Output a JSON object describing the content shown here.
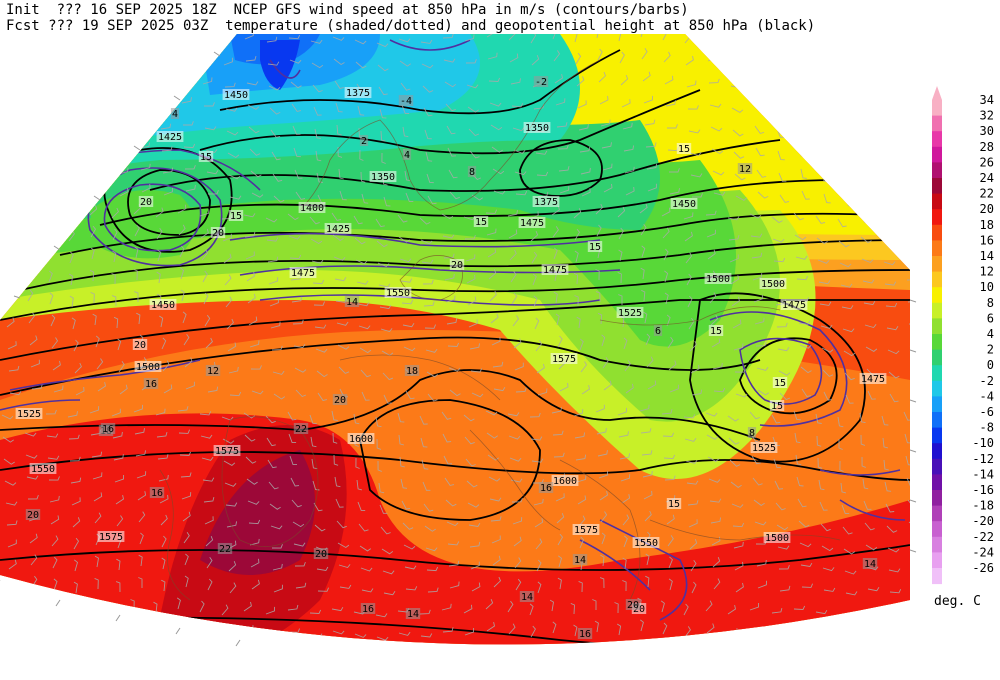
{
  "header": {
    "line1": "Init  ??? 16 SEP 2025 18Z  NCEP GFS wind speed at 850 hPa in m/s (contours/barbs)",
    "line2": "Fcst ??? 19 SEP 2025 03Z  temperature (shaded/dotted) and geopotential height at 850 hPa (black)"
  },
  "legend": {
    "units": "deg. C",
    "levels": [
      {
        "label": "34",
        "color": "#f8b0c4"
      },
      {
        "label": "32",
        "color": "#f070b0"
      },
      {
        "label": "30",
        "color": "#e838a8"
      },
      {
        "label": "28",
        "color": "#d0189c"
      },
      {
        "label": "26",
        "color": "#b01070"
      },
      {
        "label": "24",
        "color": "#9c0838"
      },
      {
        "label": "22",
        "color": "#c80a14"
      },
      {
        "label": "20",
        "color": "#f01810"
      },
      {
        "label": "18",
        "color": "#f84c10"
      },
      {
        "label": "16",
        "color": "#fc7a18"
      },
      {
        "label": "14",
        "color": "#fca020"
      },
      {
        "label": "12",
        "color": "#fcc820"
      },
      {
        "label": "10",
        "color": "#f8f000"
      },
      {
        "label": "8",
        "color": "#c8f028"
      },
      {
        "label": "6",
        "color": "#90e030"
      },
      {
        "label": "4",
        "color": "#58d838"
      },
      {
        "label": "2",
        "color": "#30d070"
      },
      {
        "label": "0",
        "color": "#20d8b0"
      },
      {
        "label": "-2",
        "color": "#20c8e8"
      },
      {
        "label": "-4",
        "color": "#18a0f8"
      },
      {
        "label": "-6",
        "color": "#1070f8"
      },
      {
        "label": "-8",
        "color": "#0838f0"
      },
      {
        "label": "-10",
        "color": "#2010d0"
      },
      {
        "label": "-12",
        "color": "#4810b8"
      },
      {
        "label": "-14",
        "color": "#7010a8"
      },
      {
        "label": "-16",
        "color": "#9020a0"
      },
      {
        "label": "-18",
        "color": "#b040b8"
      },
      {
        "label": "-20",
        "color": "#c860d0"
      },
      {
        "label": "-22",
        "color": "#d880e0"
      },
      {
        "label": "-24",
        "color": "#e8a0f0"
      },
      {
        "label": "-26",
        "color": "#f0c0f8"
      }
    ]
  },
  "map": {
    "height_labels": [
      {
        "text": "1450",
        "kind": "height"
      },
      {
        "text": "1375",
        "kind": "height"
      },
      {
        "text": "1425",
        "kind": "height"
      },
      {
        "text": "1350",
        "kind": "height"
      },
      {
        "text": "1350",
        "kind": "height"
      },
      {
        "text": "1375",
        "kind": "height"
      },
      {
        "text": "1450",
        "kind": "height"
      },
      {
        "text": "1400",
        "kind": "height"
      },
      {
        "text": "1425",
        "kind": "height"
      },
      {
        "text": "1475",
        "kind": "height"
      },
      {
        "text": "1500",
        "kind": "height"
      },
      {
        "text": "1500",
        "kind": "height"
      },
      {
        "text": "1475",
        "kind": "height"
      },
      {
        "text": "1475",
        "kind": "height"
      },
      {
        "text": "1525",
        "kind": "height"
      },
      {
        "text": "1550",
        "kind": "height"
      },
      {
        "text": "1450",
        "kind": "height"
      },
      {
        "text": "1500",
        "kind": "height"
      },
      {
        "text": "1575",
        "kind": "height"
      },
      {
        "text": "1525",
        "kind": "height"
      },
      {
        "text": "1550",
        "kind": "height"
      },
      {
        "text": "1575",
        "kind": "height"
      },
      {
        "text": "1600",
        "kind": "height"
      },
      {
        "text": "1600",
        "kind": "height"
      },
      {
        "text": "1575",
        "kind": "height"
      },
      {
        "text": "1575",
        "kind": "height"
      },
      {
        "text": "1550",
        "kind": "height"
      },
      {
        "text": "1525",
        "kind": "height"
      },
      {
        "text": "1500",
        "kind": "height"
      },
      {
        "text": "1475",
        "kind": "height"
      },
      {
        "text": "1475",
        "kind": "height"
      }
    ],
    "wind_labels": [
      "15",
      "20",
      "15",
      "20",
      "15",
      "15",
      "20",
      "15",
      "15",
      "20",
      "15",
      "15",
      "15",
      "20"
    ],
    "temp_labels": [
      "4",
      "-4",
      "-2",
      "2",
      "4",
      "8",
      "14",
      "16",
      "18",
      "20",
      "22",
      "20",
      "16",
      "18",
      "20",
      "22",
      "16",
      "14",
      "14",
      "16",
      "16",
      "20",
      "8",
      "6",
      "12",
      "16",
      "14",
      "14",
      "12"
    ]
  }
}
